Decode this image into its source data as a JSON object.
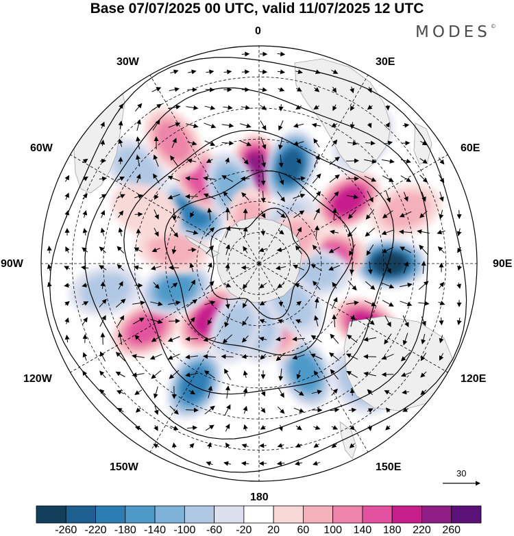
{
  "title": "Base 07/07/2025 00 UTC, valid 11/07/2025 12 UTC",
  "brand": "MODES",
  "brand_mark": "©",
  "longitude_labels": {
    "lon_0": "0",
    "lon_30e": "30E",
    "lon_60e": "60E",
    "lon_90e": "90E",
    "lon_120e": "120E",
    "lon_150e": "150E",
    "lon_180": "180",
    "lon_150w": "150W",
    "lon_120w": "120W",
    "lon_90w": "90W",
    "lon_60w": "60W",
    "lon_30w": "30W"
  },
  "colorbar": {
    "colors": [
      "#123f5c",
      "#1d5f8e",
      "#2d7db5",
      "#4d9ac9",
      "#7fb2d8",
      "#b1c8e4",
      "#dcdfee",
      "#ffffff",
      "#f9d8d8",
      "#f4b0bb",
      "#ee84a9",
      "#e3529e",
      "#c61f8c",
      "#901d84",
      "#5b1177"
    ],
    "tick_labels": [
      "-260",
      "-220",
      "-180",
      "-140",
      "-100",
      "-60",
      "-20",
      "20",
      "60",
      "100",
      "140",
      "180",
      "220",
      "260"
    ]
  },
  "wind_scale": {
    "label": "30"
  },
  "anomaly_centers": [
    {
      "lon": -2,
      "lat": -60,
      "value": 220
    },
    {
      "lon": 18,
      "lat": -57,
      "value": -230
    },
    {
      "lon": 55,
      "lat": -55,
      "value": 190
    },
    {
      "lon": 90,
      "lat": -48,
      "value": -260
    },
    {
      "lon": 84,
      "lat": -67,
      "value": 160
    },
    {
      "lon": 120,
      "lat": -50,
      "value": 200
    },
    {
      "lon": 98,
      "lat": -72,
      "value": -90
    },
    {
      "lon": 157,
      "lat": -52,
      "value": -160
    },
    {
      "lon": 165,
      "lat": -70,
      "value": 110
    },
    {
      "lon": 180,
      "lat": -70,
      "value": -90
    },
    {
      "lon": -152,
      "lat": -46,
      "value": -190
    },
    {
      "lon": -120,
      "lat": -48,
      "value": 150
    },
    {
      "lon": -138,
      "lat": -66,
      "value": 180
    },
    {
      "lon": -107,
      "lat": -62,
      "value": -160
    },
    {
      "lon": -80,
      "lat": -62,
      "value": 70
    },
    {
      "lon": -52,
      "lat": -63,
      "value": -200
    },
    {
      "lon": -34,
      "lat": -57,
      "value": 140
    },
    {
      "lon": -20,
      "lat": -64,
      "value": -110
    },
    {
      "lon": -52,
      "lat": -40,
      "value": -60
    },
    {
      "lon": -65,
      "lat": -50,
      "value": 40
    },
    {
      "lon": -35,
      "lat": -42,
      "value": 110
    },
    {
      "lon": -10,
      "lat": -77,
      "value": 80
    },
    {
      "lon": 38,
      "lat": -75,
      "value": -70
    },
    {
      "lon": 55,
      "lat": -77,
      "value": 60
    },
    {
      "lon": 70,
      "lat": -40,
      "value": 70
    },
    {
      "lon": 140,
      "lat": -73,
      "value": -60
    },
    {
      "lon": -160,
      "lat": -68,
      "value": -80
    },
    {
      "lon": -100,
      "lat": -40,
      "value": -60
    },
    {
      "lon": 40,
      "lat": -38,
      "value": -60
    },
    {
      "lon": 140,
      "lat": -40,
      "value": -60
    }
  ]
}
